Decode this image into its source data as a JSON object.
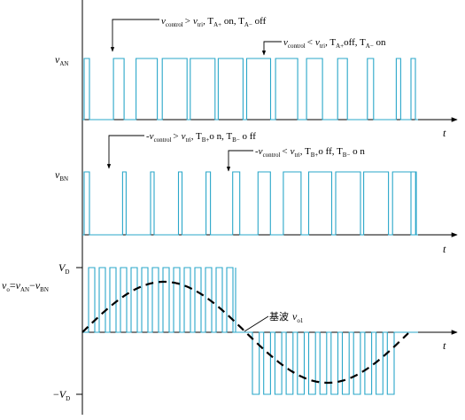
{
  "axis_label_t": "t",
  "panel_an": {
    "name_main": "v",
    "name_sub": "AN",
    "note_on": {
      "v": "v",
      "control": "control",
      "gt": ">",
      "v2": "v",
      "tri": "tri",
      "rest1": ", T",
      "sub1": "A+",
      "rest2": " on, T",
      "sub2": "A−",
      "rest3": " off"
    },
    "note_off": {
      "v": "v",
      "control": "control",
      "lt": "<",
      "v2": "v",
      "tri": "tri",
      "rest1": ", T",
      "sub1": "A+",
      "rest2": "off, T",
      "sub2": "A−",
      "rest3": " on"
    },
    "edges": [
      103,
      113,
      143,
      174,
      206,
      238,
      270,
      301,
      333,
      365,
      397,
      428,
      460
    ]
  },
  "panel_bn": {
    "name_main": "v",
    "name_sub": "BN",
    "note_on": {
      "minus": "-",
      "v": "v",
      "control": "control",
      "gt": ">",
      "v2": "v",
      "tri": "tri",
      "rest1": ", T",
      "sub1": "B+",
      "rest2": "o n, T",
      "sub2": "B−",
      "rest3": " o ff"
    },
    "note_off": {
      "minus": "-",
      "v": "v",
      "control": "control",
      "lt": "<",
      "v2": "v",
      "tri": "tri",
      "rest1": ", T",
      "sub1": "B+",
      "rest2": "o ff, T",
      "sub2": "B−",
      "rest3": " o n"
    }
  },
  "panel_vo": {
    "vo_main": "v",
    "vo_sub": "o",
    "eq1": "=",
    "an_main": "v",
    "an_sub": "AN",
    "minus": "−",
    "bn_main": "v",
    "bn_sub": "BN",
    "vd_main": "V",
    "vd_sub": "D",
    "nvd_minus": "−",
    "nvd_main": "V",
    "nvd_sub": "D",
    "fund_label": "基波",
    "fund_main": "v",
    "fund_sub": "o1"
  }
}
